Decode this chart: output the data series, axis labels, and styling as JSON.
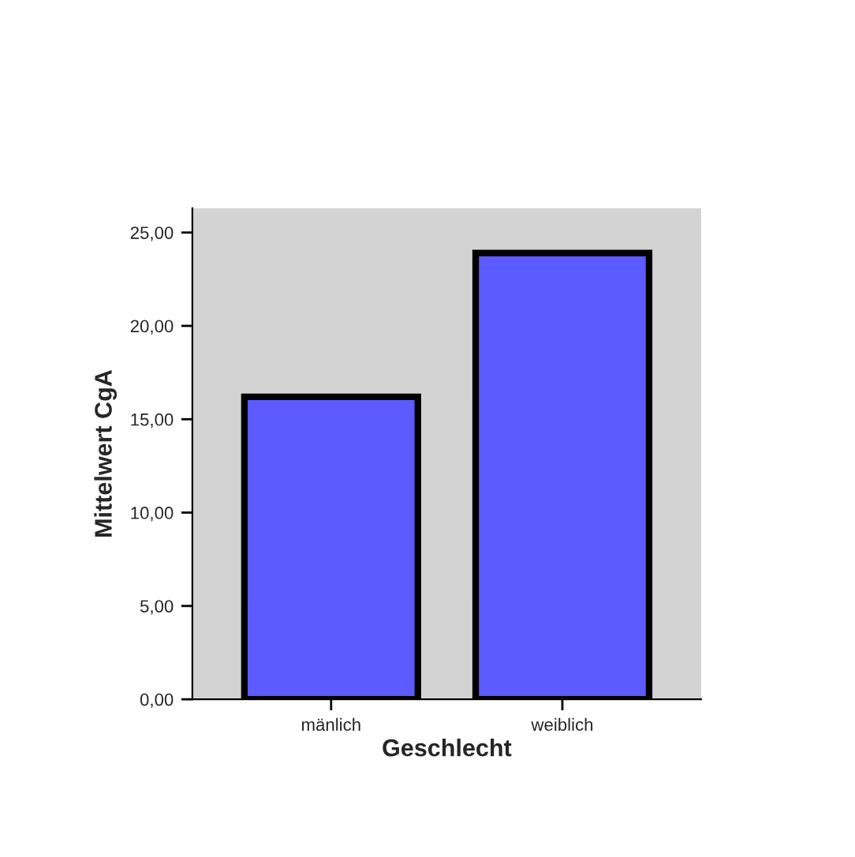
{
  "chart_data": {
    "type": "bar",
    "xlabel": "Geschlecht",
    "ylabel": "Mittelwert CgA",
    "categories": [
      "mänlich",
      "weiblich"
    ],
    "values": [
      16.2,
      23.9
    ],
    "color": "#5b5bff",
    "ylim": [
      0,
      26.3
    ],
    "yticks": [
      {
        "value": 0,
        "label": "0,00"
      },
      {
        "value": 5,
        "label": "5,00"
      },
      {
        "value": 10,
        "label": "10,00"
      },
      {
        "value": 15,
        "label": "15,00"
      },
      {
        "value": 20,
        "label": "20,00"
      },
      {
        "value": 25,
        "label": "25,00"
      }
    ],
    "grid": false,
    "legend": false
  }
}
